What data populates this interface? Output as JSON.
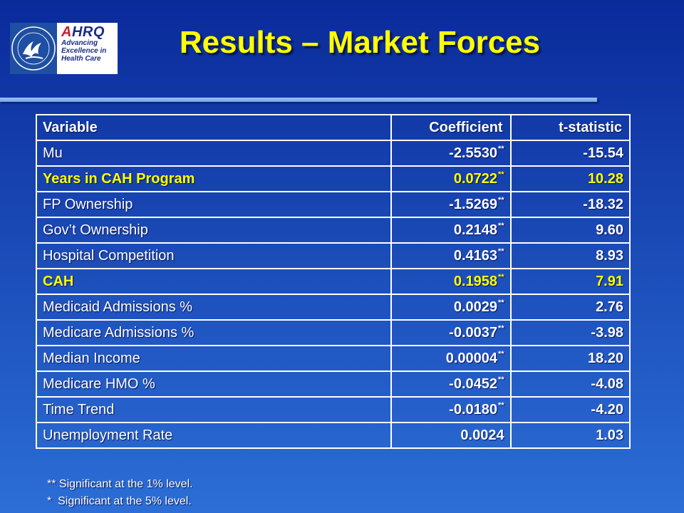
{
  "slide": {
    "title": "Results – Market Forces",
    "logo": {
      "brand": "AHRQ",
      "tagline": [
        "Advancing",
        "Excellence in",
        "Health Care"
      ],
      "seal_icon": "hhs-eagle-seal-icon"
    }
  },
  "table": {
    "headers": [
      "Variable",
      "Coefficient",
      "t-statistic"
    ],
    "rows": [
      {
        "variable": "Mu",
        "coefficient": "-2.5530",
        "sig": "**",
        "t": "-15.54",
        "highlight": false
      },
      {
        "variable": "Years in CAH Program",
        "coefficient": "0.0722",
        "sig": "**",
        "t": "10.28",
        "highlight": true
      },
      {
        "variable": "FP Ownership",
        "coefficient": "-1.5269",
        "sig": "**",
        "t": "-18.32",
        "highlight": false
      },
      {
        "variable": "Gov’t Ownership",
        "coefficient": "0.2148",
        "sig": "**",
        "t": "9.60",
        "highlight": false
      },
      {
        "variable": "Hospital Competition",
        "coefficient": "0.4163",
        "sig": "**",
        "t": "8.93",
        "highlight": false
      },
      {
        "variable": "CAH",
        "coefficient": "0.1958",
        "sig": "**",
        "t": "7.91",
        "highlight": true
      },
      {
        "variable": "Medicaid Admissions %",
        "coefficient": "0.0029",
        "sig": "**",
        "t": "2.76",
        "highlight": false
      },
      {
        "variable": "Medicare Admissions %",
        "coefficient": "-0.0037",
        "sig": "**",
        "t": "-3.98",
        "highlight": false
      },
      {
        "variable": "Median Income",
        "coefficient": "0.00004",
        "sig": "**",
        "t": "18.20",
        "highlight": false
      },
      {
        "variable": "Medicare HMO %",
        "coefficient": "-0.0452",
        "sig": "**",
        "t": "-4.08",
        "highlight": false
      },
      {
        "variable": "Time Trend",
        "coefficient": "-0.0180",
        "sig": "**",
        "t": "-4.20",
        "highlight": false
      },
      {
        "variable": "Unemployment Rate",
        "coefficient": "0.0024",
        "sig": "",
        "t": "1.03",
        "highlight": false
      }
    ]
  },
  "footnotes": {
    "note1": "** Significant at the 1% level.",
    "note2": "*  Significant at the 5% level."
  },
  "colors": {
    "background_top": "#0a2a9a",
    "background_bottom": "#2c6ed6",
    "title": "#ffff00",
    "highlight_text": "#ffff00",
    "table_border": "#ffffff"
  }
}
